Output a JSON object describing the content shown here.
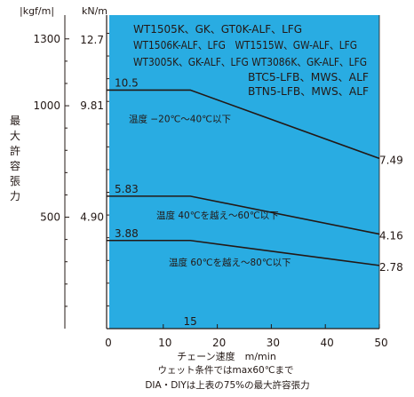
{
  "chart_data": {
    "type": "line",
    "units": {
      "left": "|kgf/m|",
      "right": "kN/m"
    },
    "ylabel": "最大許容張力",
    "xlabel": "チェーン速度　m/min",
    "x_ticks": [
      "0",
      "10",
      "20",
      "30",
      "40",
      "50"
    ],
    "xlim": [
      0,
      50
    ],
    "kgf_ticks": [
      {
        "label": "1300",
        "value": 1300
      },
      {
        "label": "1000",
        "value": 1000
      },
      {
        "label": "500",
        "value": 500
      }
    ],
    "kn_ticks": [
      {
        "label": "12.7",
        "value": 12.7
      },
      {
        "label": "9.81",
        "value": 9.81
      },
      {
        "label": "4.90",
        "value": 4.9
      }
    ],
    "ylim_kn": [
      0,
      13.8
    ],
    "models": [
      "WT1505K、GK、GT0K-ALF、LFG",
      "WT1506K-ALF、LFG　WT1515W、GW-ALF、LFG",
      "WT3005K、GK-ALF、LFG  WT3086K、GK-ALF、LFG",
      "BTC5-LFB、MWS、ALF",
      "BTN5-LFB、MWS、ALF"
    ],
    "series": [
      {
        "name": "温度 −20℃〜40℃以下",
        "x": [
          0,
          15,
          50
        ],
        "y": [
          10.5,
          10.5,
          7.49
        ],
        "start_label": "10.5",
        "end_label": "7.49"
      },
      {
        "name": "温度 40℃を越え〜60℃以下",
        "x": [
          0,
          15,
          50
        ],
        "y": [
          5.83,
          5.83,
          4.16
        ],
        "start_label": "5.83",
        "end_label": "4.16"
      },
      {
        "name": "温度 60℃を越え〜80℃以下",
        "x": [
          0,
          15,
          50
        ],
        "y": [
          3.88,
          3.88,
          2.78
        ],
        "start_label": "3.88",
        "end_label": "2.78"
      }
    ],
    "breakpoint": {
      "x": 15,
      "label": "15"
    },
    "footnotes": [
      "ウェット条件ではmax60℃まで",
      "DIA・DIYは上表の75%の最大許容張力"
    ],
    "colors": {
      "plot_fill": "#29ace2",
      "line": "#231815"
    }
  }
}
